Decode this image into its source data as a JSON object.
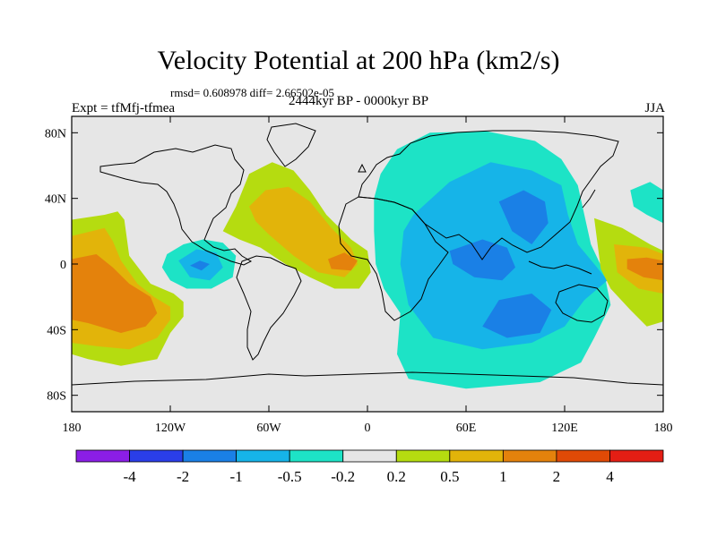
{
  "chart_data": {
    "type": "heatmap",
    "title": "Velocity Potential at 200 hPa (km2/s)",
    "stats": "rmsd= 0.608978 diff= 2.66502e-05",
    "experiment": "Expt = tfMfj-tfmea",
    "period": "2444kyr BP - 0000kyr BP",
    "season": "JJA",
    "xlim": [
      -180,
      180
    ],
    "ylim": [
      -90,
      90
    ],
    "x_ticks": [
      {
        "value": -180,
        "label": "180"
      },
      {
        "value": -120,
        "label": "120W"
      },
      {
        "value": -60,
        "label": "60W"
      },
      {
        "value": 0,
        "label": "0"
      },
      {
        "value": 60,
        "label": "60E"
      },
      {
        "value": 120,
        "label": "120E"
      },
      {
        "value": 180,
        "label": "180"
      }
    ],
    "y_ticks": [
      {
        "value": 80,
        "label": "80N"
      },
      {
        "value": 40,
        "label": "40N"
      },
      {
        "value": 0,
        "label": "0"
      },
      {
        "value": -40,
        "label": "40S"
      },
      {
        "value": -80,
        "label": "80S"
      }
    ],
    "colorbar": {
      "labels": [
        "-4",
        "-2",
        "-1",
        "-0.5",
        "-0.2",
        "0.2",
        "0.5",
        "1",
        "2",
        "4"
      ],
      "colors": [
        "#8b1ee6",
        "#2a3ee8",
        "#1a80e6",
        "#16b4e8",
        "#1de3c6",
        "#e6e6e6",
        "#b5dc10",
        "#e2b40a",
        "#e4820c",
        "#e04a06",
        "#e41e14"
      ]
    },
    "background_color": "#e6e6e6",
    "regions": [
      {
        "name": "north-pacific-positive",
        "level": "0.2-0.5",
        "points": [
          [
            -180,
            27
          ],
          [
            -160,
            30
          ],
          [
            -152,
            32
          ],
          [
            -148,
            27
          ],
          [
            -145,
            5
          ],
          [
            -132,
            -12
          ],
          [
            -118,
            -18
          ],
          [
            -112,
            -23
          ],
          [
            -112,
            -32
          ],
          [
            -120,
            -42
          ],
          [
            -128,
            -58
          ],
          [
            -150,
            -62
          ],
          [
            -170,
            -58
          ],
          [
            -180,
            -55
          ]
        ]
      },
      {
        "name": "pacific-positive-0.5",
        "level": "0.5-1",
        "points": [
          [
            -180,
            17
          ],
          [
            -160,
            22
          ],
          [
            -155,
            14
          ],
          [
            -150,
            2
          ],
          [
            -140,
            -12
          ],
          [
            -130,
            -20
          ],
          [
            -120,
            -26
          ],
          [
            -120,
            -34
          ],
          [
            -128,
            -45
          ],
          [
            -145,
            -52
          ],
          [
            -165,
            -50
          ],
          [
            -180,
            -48
          ]
        ]
      },
      {
        "name": "pacific-positive-1",
        "level": "1-2",
        "points": [
          [
            -180,
            3
          ],
          [
            -165,
            6
          ],
          [
            -155,
            -2
          ],
          [
            -145,
            -12
          ],
          [
            -132,
            -20
          ],
          [
            -128,
            -30
          ],
          [
            -135,
            -38
          ],
          [
            -150,
            -42
          ],
          [
            -170,
            -36
          ],
          [
            -180,
            -34
          ]
        ]
      },
      {
        "name": "east-pacific-negative",
        "level": "-0.5 to -0.2",
        "points": [
          [
            -122,
            6
          ],
          [
            -112,
            12
          ],
          [
            -100,
            15
          ],
          [
            -88,
            13
          ],
          [
            -80,
            5
          ],
          [
            -82,
            -8
          ],
          [
            -95,
            -15
          ],
          [
            -110,
            -15
          ],
          [
            -120,
            -10
          ],
          [
            -125,
            -2
          ]
        ]
      },
      {
        "name": "east-pacific-negative-0.5",
        "level": "-1 to -0.5",
        "points": [
          [
            -115,
            2
          ],
          [
            -104,
            9
          ],
          [
            -92,
            7
          ],
          [
            -88,
            -2
          ],
          [
            -96,
            -10
          ],
          [
            -108,
            -8
          ]
        ]
      },
      {
        "name": "east-pacific-negative-1",
        "level": "-2 to -1",
        "points": [
          [
            -108,
            -1
          ],
          [
            -102,
            2
          ],
          [
            -96,
            0
          ],
          [
            -101,
            -4
          ]
        ]
      },
      {
        "name": "atlantic-positive",
        "level": "0.2-0.5",
        "points": [
          [
            -88,
            20
          ],
          [
            -80,
            35
          ],
          [
            -72,
            55
          ],
          [
            -58,
            62
          ],
          [
            -45,
            57
          ],
          [
            -35,
            45
          ],
          [
            -25,
            30
          ],
          [
            -10,
            15
          ],
          [
            0,
            8
          ],
          [
            2,
            -5
          ],
          [
            -5,
            -15
          ],
          [
            -20,
            -15
          ],
          [
            -35,
            -8
          ],
          [
            -50,
            0
          ],
          [
            -65,
            10
          ],
          [
            -78,
            15
          ]
        ]
      },
      {
        "name": "atlantic-positive-0.5",
        "level": "0.5-1",
        "points": [
          [
            -72,
            35
          ],
          [
            -62,
            45
          ],
          [
            -48,
            47
          ],
          [
            -35,
            38
          ],
          [
            -22,
            22
          ],
          [
            -10,
            10
          ],
          [
            -6,
            0
          ],
          [
            -14,
            -8
          ],
          [
            -30,
            -5
          ],
          [
            -45,
            5
          ],
          [
            -60,
            18
          ],
          [
            -68,
            26
          ]
        ]
      },
      {
        "name": "atlantic-positive-2",
        "level": "1-2",
        "points": [
          [
            -24,
            3
          ],
          [
            -14,
            7
          ],
          [
            -6,
            2
          ],
          [
            -10,
            -4
          ],
          [
            -22,
            -3
          ]
        ]
      },
      {
        "name": "eastern-hemisphere-negative",
        "level": "-0.5 to -0.2",
        "points": [
          [
            8,
            55
          ],
          [
            18,
            70
          ],
          [
            38,
            80
          ],
          [
            72,
            81
          ],
          [
            102,
            75
          ],
          [
            118,
            64
          ],
          [
            128,
            48
          ],
          [
            132,
            30
          ],
          [
            136,
            12
          ],
          [
            144,
            -5
          ],
          [
            148,
            -25
          ],
          [
            138,
            -45
          ],
          [
            130,
            -60
          ],
          [
            105,
            -72
          ],
          [
            60,
            -76
          ],
          [
            25,
            -70
          ],
          [
            18,
            -55
          ],
          [
            20,
            -30
          ],
          [
            10,
            -15
          ],
          [
            5,
            0
          ],
          [
            4,
            20
          ],
          [
            4,
            40
          ]
        ]
      },
      {
        "name": "eastern-hemisphere-negative-0.5",
        "level": "-1 to -0.5",
        "points": [
          [
            28,
            30
          ],
          [
            50,
            50
          ],
          [
            75,
            62
          ],
          [
            100,
            57
          ],
          [
            118,
            48
          ],
          [
            122,
            30
          ],
          [
            128,
            12
          ],
          [
            138,
            0
          ],
          [
            146,
            -10
          ],
          [
            132,
            -22
          ],
          [
            120,
            -38
          ],
          [
            100,
            -48
          ],
          [
            70,
            -52
          ],
          [
            40,
            -45
          ],
          [
            25,
            -25
          ],
          [
            20,
            0
          ],
          [
            22,
            20
          ]
        ]
      },
      {
        "name": "asia-negative-1",
        "level": "-2 to -1",
        "points": [
          [
            80,
            38
          ],
          [
            95,
            45
          ],
          [
            108,
            38
          ],
          [
            110,
            25
          ],
          [
            100,
            12
          ],
          [
            88,
            20
          ]
        ]
      },
      {
        "name": "indian-ocean-negative-1",
        "level": "-2 to -1",
        "points": [
          [
            50,
            8
          ],
          [
            70,
            15
          ],
          [
            85,
            10
          ],
          [
            90,
            -2
          ],
          [
            82,
            -10
          ],
          [
            65,
            -8
          ],
          [
            52,
            0
          ]
        ]
      },
      {
        "name": "south-indian-negative-1",
        "level": "-2 to -1",
        "points": [
          [
            80,
            -22
          ],
          [
            100,
            -18
          ],
          [
            112,
            -28
          ],
          [
            105,
            -42
          ],
          [
            85,
            -45
          ],
          [
            70,
            -38
          ]
        ]
      },
      {
        "name": "west-pacific-positive",
        "level": "0.2-0.5",
        "points": [
          [
            138,
            28
          ],
          [
            155,
            22
          ],
          [
            172,
            12
          ],
          [
            180,
            8
          ],
          [
            180,
            -35
          ],
          [
            170,
            -38
          ],
          [
            160,
            -28
          ],
          [
            148,
            -15
          ],
          [
            142,
            -3
          ]
        ]
      },
      {
        "name": "west-pacific-positive-0.5",
        "level": "0.5-1",
        "points": [
          [
            150,
            12
          ],
          [
            170,
            10
          ],
          [
            180,
            6
          ],
          [
            180,
            -18
          ],
          [
            165,
            -15
          ],
          [
            152,
            -5
          ]
        ]
      },
      {
        "name": "west-pacific-positive-1",
        "level": "1-2",
        "points": [
          [
            158,
            3
          ],
          [
            170,
            4
          ],
          [
            180,
            2
          ],
          [
            180,
            -10
          ],
          [
            168,
            -8
          ],
          [
            158,
            -3
          ]
        ]
      },
      {
        "name": "north-pacific-negative-tail",
        "level": "-0.5 to -0.2",
        "points": [
          [
            160,
            45
          ],
          [
            172,
            50
          ],
          [
            180,
            45
          ],
          [
            180,
            25
          ],
          [
            170,
            30
          ],
          [
            162,
            35
          ]
        ]
      }
    ]
  }
}
